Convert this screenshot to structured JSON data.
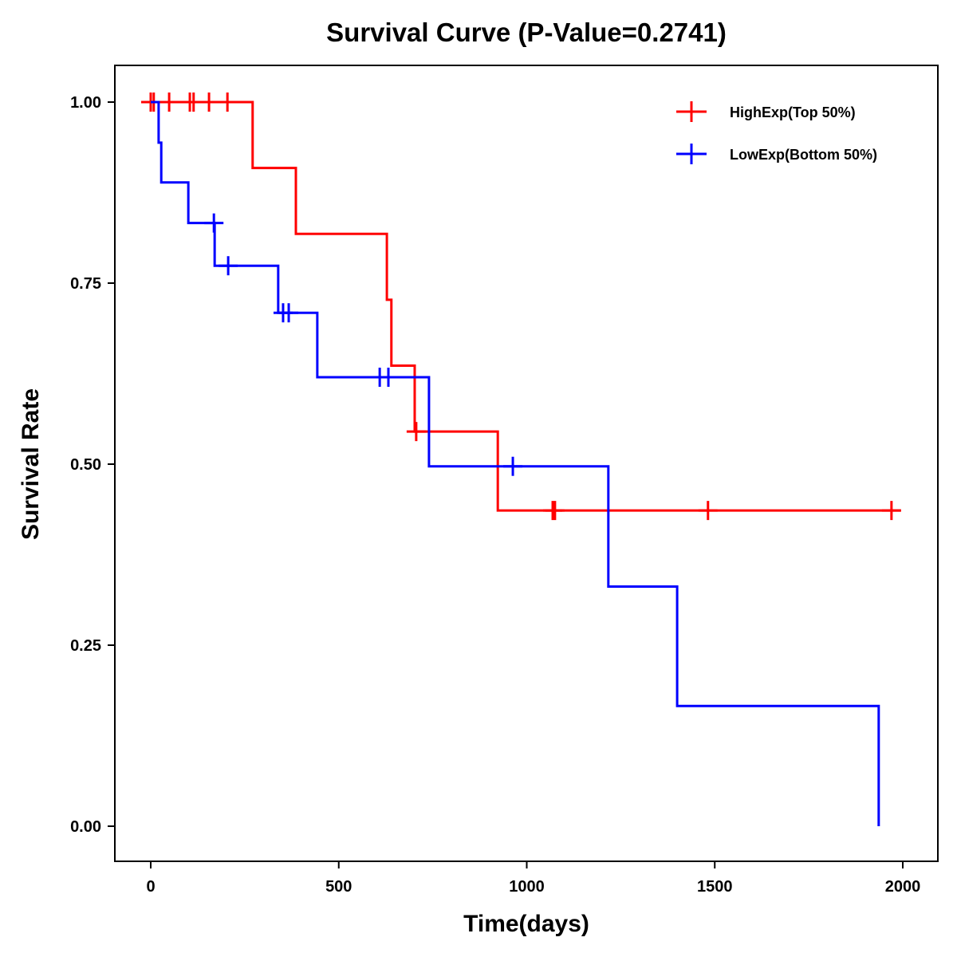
{
  "chart_data": {
    "type": "line",
    "subtype": "kaplan-meier",
    "title": "Survival Curve (P-Value=0.2741)",
    "xlabel": "Time(days)",
    "ylabel": "Survival Rate",
    "xlim": [
      -95,
      2095
    ],
    "ylim": [
      -0.05,
      1.05
    ],
    "xticks": [
      0,
      500,
      1000,
      1500,
      2000
    ],
    "xtick_labels": [
      "0",
      "500",
      "1000",
      "1500",
      "2000"
    ],
    "yticks": [
      0,
      0.25,
      0.5,
      0.75,
      1.0
    ],
    "ytick_labels": [
      "0.00",
      "0.25",
      "0.50",
      "0.75",
      "1.00"
    ],
    "grid": false,
    "legend_position": "top-right",
    "series": [
      {
        "name": "HighExp(Top 50%)",
        "color": "#ff0000",
        "steps": [
          [
            0,
            1.0
          ],
          [
            271,
            0.909
          ],
          [
            386,
            0.818
          ],
          [
            628,
            0.727
          ],
          [
            640,
            0.636
          ],
          [
            702,
            0.545
          ],
          [
            923,
            0.436
          ]
        ],
        "end_time": 1995,
        "censored": [
          [
            0,
            1.0
          ],
          [
            8,
            1.0
          ],
          [
            49,
            1.0
          ],
          [
            104,
            1.0
          ],
          [
            114,
            1.0
          ],
          [
            155,
            1.0
          ],
          [
            204,
            1.0
          ],
          [
            706,
            0.545
          ],
          [
            1069,
            0.436
          ],
          [
            1075,
            0.436
          ],
          [
            1482,
            0.436
          ],
          [
            1970,
            0.436
          ]
        ]
      },
      {
        "name": "LowExp(Bottom 50%)",
        "color": "#0000ff",
        "steps": [
          [
            0,
            1.0
          ],
          [
            21,
            0.944
          ],
          [
            28,
            0.889
          ],
          [
            100,
            0.833
          ],
          [
            170,
            0.774
          ],
          [
            339,
            0.709
          ],
          [
            443,
            0.62
          ],
          [
            740,
            0.497
          ],
          [
            1217,
            0.331
          ],
          [
            1400,
            0.166
          ],
          [
            1936,
            0.0
          ]
        ],
        "end_time": 1936,
        "censored": [
          [
            168,
            0.833
          ],
          [
            206,
            0.774
          ],
          [
            352,
            0.709
          ],
          [
            367,
            0.709
          ],
          [
            609,
            0.62
          ],
          [
            632,
            0.62
          ],
          [
            963,
            0.497
          ]
        ]
      }
    ]
  }
}
